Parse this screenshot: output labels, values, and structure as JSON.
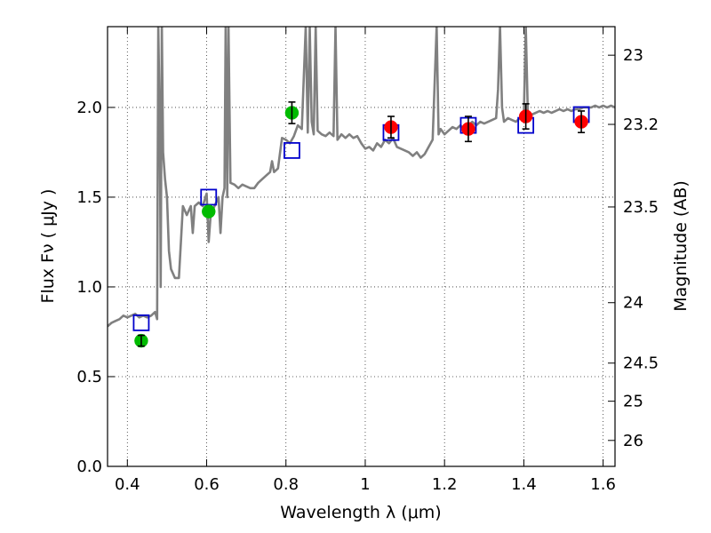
{
  "chart_data": {
    "type": "scatter",
    "title": "",
    "xlabel": "Wavelength  λ (μm)",
    "ylabel": "Flux  Fν ( μJy )",
    "ylabel_right": "Magnitude (AB)",
    "xlim": [
      0.35,
      1.63
    ],
    "ylim": [
      0.0,
      2.45
    ],
    "grid": true,
    "x_ticks": [
      {
        "value": 0.4,
        "label": "0.4"
      },
      {
        "value": 0.6,
        "label": "0.6"
      },
      {
        "value": 0.8,
        "label": "0.8"
      },
      {
        "value": 1.0,
        "label": "1"
      },
      {
        "value": 1.2,
        "label": "1.2"
      },
      {
        "value": 1.4,
        "label": "1.4"
      },
      {
        "value": 1.6,
        "label": "1.6"
      }
    ],
    "y_ticks": [
      {
        "value": 0.0,
        "label": "0.0"
      },
      {
        "value": 0.5,
        "label": "0.5"
      },
      {
        "value": 1.0,
        "label": "1.0"
      },
      {
        "value": 1.5,
        "label": "1.5"
      },
      {
        "value": 2.0,
        "label": "2.0"
      }
    ],
    "right_ticks": [
      {
        "value": 23,
        "label": "23"
      },
      {
        "value": 23.2,
        "label": "23.2"
      },
      {
        "value": 23.5,
        "label": "23.5"
      },
      {
        "value": 24,
        "label": "24"
      },
      {
        "value": 24.5,
        "label": "24.5"
      },
      {
        "value": 25,
        "label": "25"
      },
      {
        "value": 26,
        "label": "26"
      }
    ],
    "colors": {
      "spectrum": "#808080",
      "model_box": "#0000cc",
      "green_point": "#00bb00",
      "red_point": "#ff0000",
      "error_bar": "#000000"
    },
    "series": [
      {
        "type": "line",
        "points": [
          [
            0.35,
            0.78
          ],
          [
            0.36,
            0.8
          ],
          [
            0.37,
            0.81
          ],
          [
            0.38,
            0.82
          ],
          [
            0.39,
            0.84
          ],
          [
            0.4,
            0.83
          ],
          [
            0.41,
            0.84
          ],
          [
            0.42,
            0.85
          ],
          [
            0.43,
            0.83
          ],
          [
            0.44,
            0.84
          ],
          [
            0.45,
            0.83
          ],
          [
            0.46,
            0.84
          ],
          [
            0.47,
            0.86
          ],
          [
            0.475,
            0.82
          ],
          [
            0.478,
            2.45
          ],
          [
            0.482,
            1.85
          ],
          [
            0.484,
            1.0
          ],
          [
            0.487,
            2.45
          ],
          [
            0.49,
            1.75
          ],
          [
            0.495,
            1.6
          ],
          [
            0.5,
            1.5
          ],
          [
            0.505,
            1.2
          ],
          [
            0.51,
            1.1
          ],
          [
            0.52,
            1.05
          ],
          [
            0.53,
            1.05
          ],
          [
            0.54,
            1.45
          ],
          [
            0.55,
            1.4
          ],
          [
            0.56,
            1.45
          ],
          [
            0.565,
            1.3
          ],
          [
            0.57,
            1.45
          ],
          [
            0.58,
            1.47
          ],
          [
            0.59,
            1.45
          ],
          [
            0.6,
            1.52
          ],
          [
            0.605,
            1.25
          ],
          [
            0.61,
            1.4
          ],
          [
            0.62,
            1.45
          ],
          [
            0.63,
            1.5
          ],
          [
            0.635,
            1.3
          ],
          [
            0.64,
            1.5
          ],
          [
            0.645,
            1.55
          ],
          [
            0.648,
            2.45
          ],
          [
            0.652,
            1.5
          ],
          [
            0.655,
            2.45
          ],
          [
            0.66,
            1.58
          ],
          [
            0.67,
            1.57
          ],
          [
            0.68,
            1.55
          ],
          [
            0.69,
            1.57
          ],
          [
            0.7,
            1.56
          ],
          [
            0.71,
            1.55
          ],
          [
            0.72,
            1.55
          ],
          [
            0.73,
            1.58
          ],
          [
            0.74,
            1.6
          ],
          [
            0.75,
            1.62
          ],
          [
            0.76,
            1.64
          ],
          [
            0.765,
            1.7
          ],
          [
            0.77,
            1.64
          ],
          [
            0.78,
            1.66
          ],
          [
            0.79,
            1.83
          ],
          [
            0.8,
            1.82
          ],
          [
            0.81,
            1.8
          ],
          [
            0.82,
            1.84
          ],
          [
            0.83,
            1.9
          ],
          [
            0.84,
            1.88
          ],
          [
            0.85,
            2.45
          ],
          [
            0.855,
            1.86
          ],
          [
            0.86,
            2.45
          ],
          [
            0.865,
            1.92
          ],
          [
            0.87,
            1.85
          ],
          [
            0.875,
            2.45
          ],
          [
            0.88,
            1.87
          ],
          [
            0.89,
            1.85
          ],
          [
            0.9,
            1.84
          ],
          [
            0.91,
            1.86
          ],
          [
            0.92,
            1.84
          ],
          [
            0.925,
            2.45
          ],
          [
            0.93,
            1.82
          ],
          [
            0.94,
            1.85
          ],
          [
            0.95,
            1.83
          ],
          [
            0.96,
            1.85
          ],
          [
            0.97,
            1.83
          ],
          [
            0.98,
            1.84
          ],
          [
            0.99,
            1.8
          ],
          [
            1.0,
            1.77
          ],
          [
            1.01,
            1.78
          ],
          [
            1.02,
            1.76
          ],
          [
            1.03,
            1.8
          ],
          [
            1.04,
            1.78
          ],
          [
            1.05,
            1.82
          ],
          [
            1.06,
            1.8
          ],
          [
            1.07,
            1.83
          ],
          [
            1.08,
            1.78
          ],
          [
            1.09,
            1.77
          ],
          [
            1.1,
            1.76
          ],
          [
            1.11,
            1.75
          ],
          [
            1.12,
            1.73
          ],
          [
            1.13,
            1.75
          ],
          [
            1.14,
            1.72
          ],
          [
            1.15,
            1.74
          ],
          [
            1.16,
            1.78
          ],
          [
            1.17,
            1.82
          ],
          [
            1.18,
            2.45
          ],
          [
            1.185,
            1.85
          ],
          [
            1.19,
            1.88
          ],
          [
            1.2,
            1.85
          ],
          [
            1.21,
            1.87
          ],
          [
            1.22,
            1.89
          ],
          [
            1.23,
            1.88
          ],
          [
            1.24,
            1.9
          ],
          [
            1.25,
            1.88
          ],
          [
            1.26,
            1.9
          ],
          [
            1.27,
            1.92
          ],
          [
            1.28,
            1.9
          ],
          [
            1.29,
            1.92
          ],
          [
            1.3,
            1.91
          ],
          [
            1.31,
            1.92
          ],
          [
            1.32,
            1.93
          ],
          [
            1.33,
            1.94
          ],
          [
            1.335,
            2.1
          ],
          [
            1.34,
            2.45
          ],
          [
            1.345,
            2.0
          ],
          [
            1.35,
            1.92
          ],
          [
            1.36,
            1.94
          ],
          [
            1.37,
            1.93
          ],
          [
            1.38,
            1.92
          ],
          [
            1.39,
            1.94
          ],
          [
            1.4,
            1.95
          ],
          [
            1.405,
            2.45
          ],
          [
            1.41,
            1.97
          ],
          [
            1.42,
            1.96
          ],
          [
            1.43,
            1.97
          ],
          [
            1.44,
            1.98
          ],
          [
            1.45,
            1.97
          ],
          [
            1.46,
            1.98
          ],
          [
            1.47,
            1.97
          ],
          [
            1.48,
            1.98
          ],
          [
            1.49,
            1.99
          ],
          [
            1.5,
            1.98
          ],
          [
            1.51,
            1.99
          ],
          [
            1.52,
            1.98
          ],
          [
            1.53,
            1.99
          ],
          [
            1.54,
            1.99
          ],
          [
            1.55,
            2.0
          ],
          [
            1.56,
            2.0
          ],
          [
            1.57,
            2.0
          ],
          [
            1.58,
            2.01
          ],
          [
            1.59,
            2.0
          ],
          [
            1.6,
            2.01
          ],
          [
            1.61,
            2.0
          ],
          [
            1.62,
            2.01
          ],
          [
            1.63,
            2.0
          ]
        ]
      },
      {
        "type": "square",
        "points": [
          [
            0.435,
            0.8
          ],
          [
            0.605,
            1.5
          ],
          [
            0.815,
            1.76
          ],
          [
            1.065,
            1.86
          ],
          [
            1.26,
            1.9
          ],
          [
            1.405,
            1.9
          ],
          [
            1.545,
            1.96
          ]
        ]
      },
      {
        "type": "green-point",
        "points": [
          {
            "x": 0.435,
            "y": 0.7,
            "err": 0.03
          },
          {
            "x": 0.605,
            "y": 1.42,
            "err": 0.0
          },
          {
            "x": 0.815,
            "y": 1.97,
            "err": 0.06
          }
        ]
      },
      {
        "type": "red-point",
        "points": [
          {
            "x": 1.065,
            "y": 1.89,
            "err": 0.06
          },
          {
            "x": 1.26,
            "y": 1.88,
            "err": 0.07
          },
          {
            "x": 1.405,
            "y": 1.95,
            "err": 0.07
          },
          {
            "x": 1.545,
            "y": 1.92,
            "err": 0.06
          }
        ]
      }
    ]
  }
}
